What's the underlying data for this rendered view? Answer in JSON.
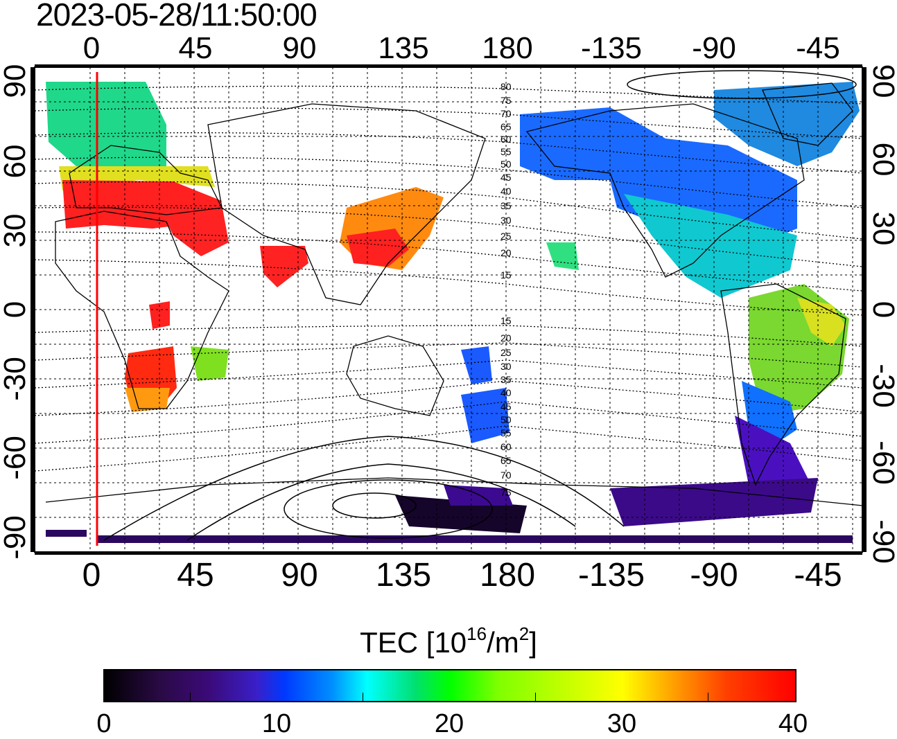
{
  "timestamp": "2023-05-28/11:50:00",
  "colorbar": {
    "label_main": "TEC  [10",
    "label_exp": "16",
    "label_mid": "/m",
    "label_exp2": "2",
    "label_end": "]",
    "ticks": [
      "0",
      "10",
      "20",
      "30",
      "40"
    ]
  },
  "axes": {
    "lon_ticks": [
      "0",
      "45",
      "90",
      "135",
      "180",
      "-135",
      "-90",
      "-45"
    ],
    "lat_ticks": [
      "90",
      "60",
      "30",
      "0",
      "-30",
      "-60",
      "-90"
    ]
  },
  "contour_labels": {
    "north": [
      "80",
      "75",
      "70",
      "65",
      "60",
      "55",
      "50",
      "45",
      "40",
      "35",
      "30",
      "25",
      "20",
      "15"
    ],
    "south": [
      "15",
      "20",
      "25",
      "30",
      "35",
      "40",
      "45",
      "50",
      "55",
      "60",
      "65",
      "70",
      "75"
    ]
  },
  "colors": {
    "terminator": "#ff0000",
    "scale": [
      "#000000",
      "#3b0a78",
      "#0038ff",
      "#00ffff",
      "#00ff00",
      "#ffff00",
      "#ff0000"
    ]
  }
}
